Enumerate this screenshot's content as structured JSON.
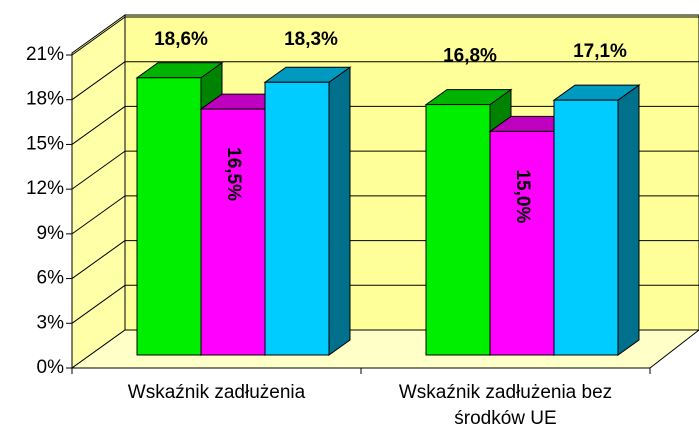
{
  "chart_data": {
    "type": "bar3d",
    "categories": [
      "Wskaźnik zadłużenia",
      "Wskaźnik zadłużenia bez środków UE"
    ],
    "series": [
      {
        "color": "#00ee00",
        "values": [
          18.6,
          16.8
        ],
        "value_labels": [
          "18,6%",
          "16,8%"
        ]
      },
      {
        "color": "#ff00ff",
        "values": [
          16.5,
          15.0
        ],
        "value_labels": [
          "16,5%",
          "15,0%"
        ]
      },
      {
        "color": "#00ccff",
        "values": [
          18.3,
          17.1
        ],
        "value_labels": [
          "18,3%",
          "17,1%"
        ]
      }
    ],
    "ylim": [
      0,
      21
    ],
    "yticks": [
      {
        "value": 0,
        "label": "0%"
      },
      {
        "value": 3,
        "label": "3%"
      },
      {
        "value": 6,
        "label": "6%"
      },
      {
        "value": 9,
        "label": "9%"
      },
      {
        "value": 12,
        "label": "12%"
      },
      {
        "value": 15,
        "label": "15%"
      },
      {
        "value": 18,
        "label": "18%"
      },
      {
        "value": 21,
        "label": "21%"
      }
    ],
    "grid": true
  }
}
